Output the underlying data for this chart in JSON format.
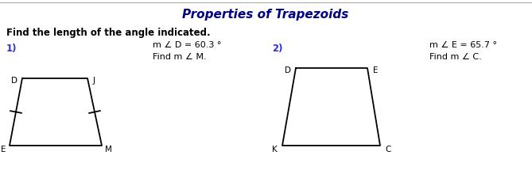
{
  "title": "Properties of Trapezoids",
  "title_color": "#00008B",
  "title_fontsize": 11,
  "subtitle": "Find the length of the angle indicated.",
  "subtitle_fontsize": 8.5,
  "background_color": "#ffffff",
  "problem1_label": "1)",
  "problem1_color": "#3333cc",
  "problem1_text_line1": "m ∠ D = 60.3 °",
  "problem1_text_line2": "Find m ∠ M.",
  "problem2_label": "2)",
  "problem2_color": "#3333cc",
  "problem2_text_line1": "m ∠ E = 65.7 °",
  "problem2_text_line2": "Find m ∠ C.",
  "trap_color": "#000000",
  "trap_linewidth": 1.3,
  "top_line_color": "#aaaaaa",
  "note_fontsize": 8
}
